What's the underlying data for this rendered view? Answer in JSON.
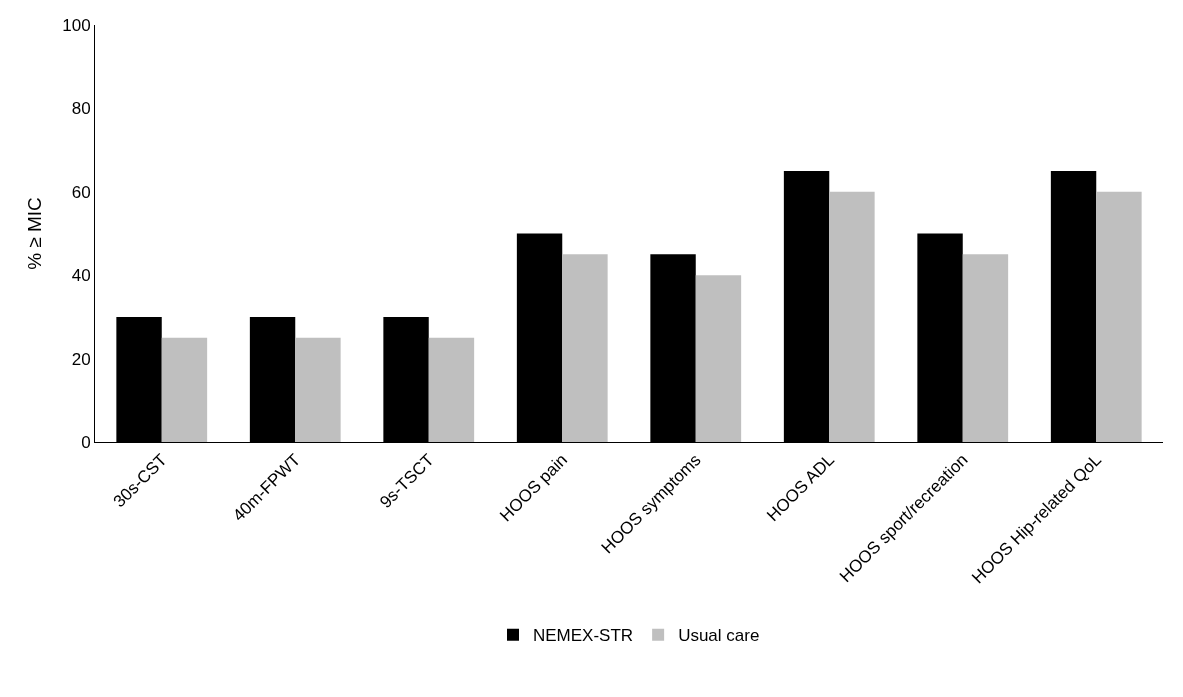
{
  "chart_data": {
    "type": "bar",
    "ylabel": "% ≥ MIC",
    "categories": [
      "30s-CST",
      "40m-FPWT",
      "9s-TSCT",
      "HOOS pain",
      "HOOS symptoms",
      "HOOS ADL",
      "HOOS sport/recreation",
      "HOOS Hip-related QoL"
    ],
    "series": [
      {
        "name": "NEMEX-STR",
        "color": "#000000",
        "values": [
          30,
          30,
          30,
          50,
          45,
          65,
          50,
          65
        ]
      },
      {
        "name": "Usual care",
        "color": "#bfbfbf",
        "values": [
          25,
          25,
          25,
          45,
          40,
          60,
          45,
          60
        ]
      }
    ],
    "ylim": [
      0,
      100
    ],
    "yticks": [
      0,
      20,
      40,
      60,
      80,
      100
    ],
    "legend": "bottom"
  }
}
